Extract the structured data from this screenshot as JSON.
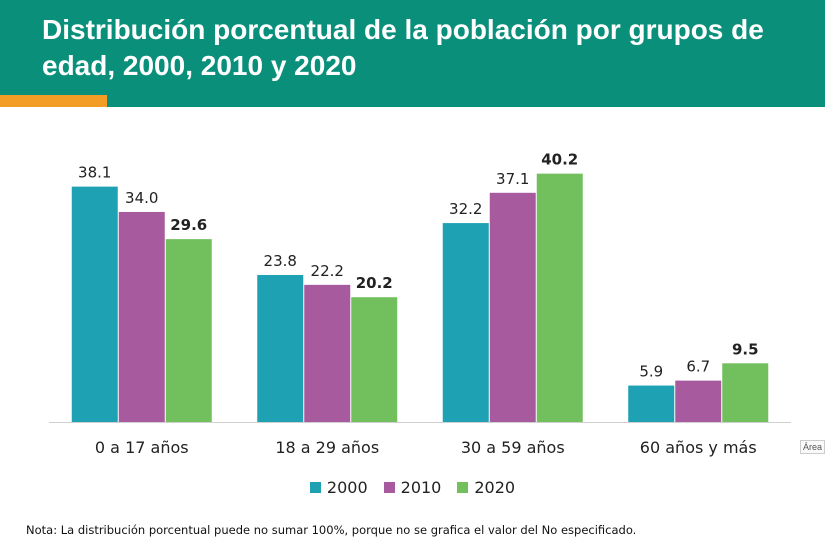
{
  "header": {
    "title": "Distribución porcentual de la población por grupos de edad, 2000, 2010 y 2020"
  },
  "side_tag": "Área d",
  "note": "Nota: La distribución porcentual puede no sumar 100%, porque no se grafica el valor del No especificado.",
  "colors": {
    "header_bg": "#0a8f7b",
    "accent": "#f39c26"
  },
  "chart_data": {
    "type": "bar",
    "title": "Distribución porcentual de la población por grupos de edad, 2000, 2010 y 2020",
    "categories": [
      "0 a 17 años",
      "18 a 29 años",
      "30 a 59 años",
      "60 años y más"
    ],
    "series": [
      {
        "name": "2000",
        "color": "#1fa1b4",
        "values": [
          38.1,
          23.8,
          32.2,
          5.9
        ],
        "labels": [
          "38.1",
          "23.8",
          "32.2",
          "5.9"
        ],
        "bold": false
      },
      {
        "name": "2010",
        "color": "#a85a9f",
        "values": [
          34.0,
          22.2,
          37.1,
          6.7
        ],
        "labels": [
          "34.0",
          "22.2",
          "37.1",
          "6.7"
        ],
        "bold": false
      },
      {
        "name": "2020",
        "color": "#72bf5d",
        "values": [
          29.6,
          20.2,
          40.2,
          9.5
        ],
        "labels": [
          "29.6",
          "20.2",
          "40.2",
          "9.5"
        ],
        "bold": true
      }
    ],
    "xlabel": "",
    "ylabel": "",
    "ylim": [
      0,
      45
    ],
    "grid": false,
    "legend": "bottom"
  }
}
